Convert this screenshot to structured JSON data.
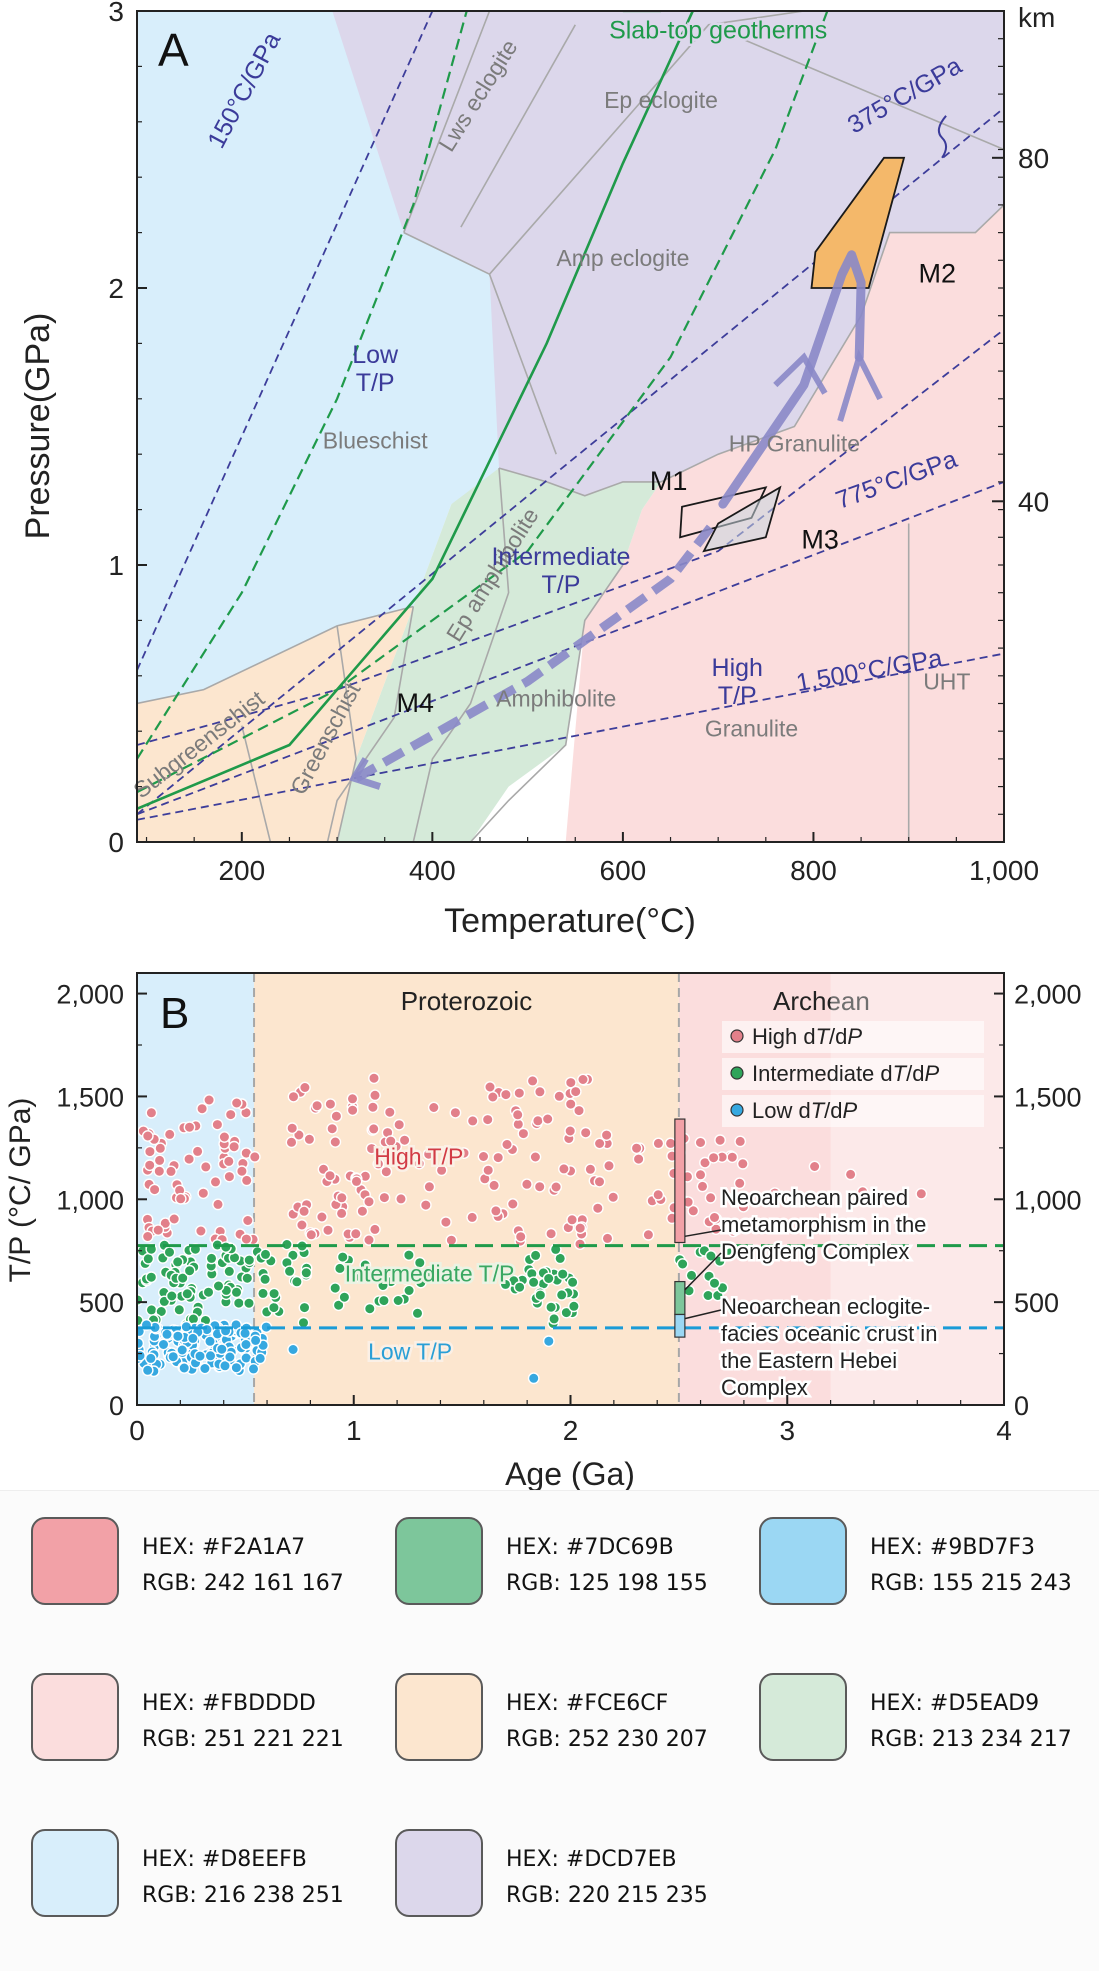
{
  "chart_data": [
    {
      "panel": "A",
      "type": "line",
      "panel_label": "A",
      "xlabel": "Temperature(°C)",
      "ylabel": "Pressure(GPa)",
      "y2label": "km",
      "xlim": [
        90,
        1000
      ],
      "ylim": [
        0,
        3
      ],
      "xticks": [
        200,
        400,
        600,
        800,
        1000
      ],
      "xtick_labels": [
        "200",
        "400",
        "600",
        "800",
        "1,000"
      ],
      "yticks": [
        0,
        1,
        2,
        3
      ],
      "ytick_labels": [
        "0",
        "1",
        "2",
        "3"
      ],
      "y2ticks": [
        {
          "gpa": 1.23,
          "label": "40"
        },
        {
          "gpa": 2.47,
          "label": "80"
        }
      ],
      "facies_regions": [
        {
          "name": "Lws eclogite",
          "color": "#DCD7EB"
        },
        {
          "name": "Ep eclogite",
          "color": "#DCD7EB"
        },
        {
          "name": "Amp eclogite",
          "color": "#DCD7EB"
        },
        {
          "name": "Blueschist",
          "color": "#D8EEFB"
        },
        {
          "name": "Ep amphibolite",
          "color": "#D5EAD9"
        },
        {
          "name": "Amphibolite",
          "color": "#D5EAD9"
        },
        {
          "name": "HP Granulite",
          "color": "#FBDDDD"
        },
        {
          "name": "Granulite",
          "color": "#FBDDDD"
        },
        {
          "name": "UHT",
          "color": "#FBDDDD"
        },
        {
          "name": "Greenschist",
          "color": "#FCE6CF"
        },
        {
          "name": "Subgreenschist",
          "color": "#FCE6CF"
        }
      ],
      "regime_labels": [
        {
          "line1": "Low",
          "line2": "T/P",
          "T": 340,
          "P": 1.73
        },
        {
          "line1": "Intermediate",
          "line2": "T/P",
          "T": 535,
          "P": 1.0
        },
        {
          "line1": "High",
          "line2": "T/P",
          "T": 720,
          "P": 0.6
        }
      ],
      "thermal_gradients": [
        {
          "label": "150°C/GPa",
          "slope": 150
        },
        {
          "label": "375°C/GPa",
          "slope": 375
        },
        {
          "label": "775°C/GPa",
          "slope": 775
        },
        {
          "label": "1,500°C/GPa",
          "slope": 1500
        }
      ],
      "slab_geotherms_label": "Slab-top geotherms",
      "metamorphic_stages": [
        {
          "name": "M1",
          "points": [
            [
              662,
              1.21
            ],
            [
              750,
              1.28
            ],
            [
              735,
              1.17
            ],
            [
              660,
              1.1
            ]
          ]
        },
        {
          "name": "M2",
          "points": [
            [
              798,
              2.0
            ],
            [
              858,
              2.0
            ],
            [
              895,
              2.47
            ],
            [
              874,
              2.47
            ],
            [
              802,
              2.13
            ]
          ]
        },
        {
          "name": "M3",
          "points": [
            [
              700,
              1.15
            ],
            [
              765,
              1.28
            ],
            [
              750,
              1.1
            ],
            [
              685,
              1.05
            ]
          ]
        },
        {
          "name": "M4",
          "T": 382,
          "P": 0.45
        }
      ],
      "pt_path_prograde": [
        [
          320,
          0.23
        ],
        [
          500,
          0.58
        ],
        [
          650,
          0.95
        ],
        [
          695,
          1.15
        ]
      ],
      "pt_path_loop": [
        [
          705,
          1.22
        ],
        [
          790,
          1.65
        ],
        [
          830,
          2.05
        ],
        [
          840,
          2.12
        ],
        [
          850,
          2.02
        ],
        [
          848,
          1.75
        ]
      ],
      "pt_path_retro": [
        [
          700,
          1.22
        ],
        [
          800,
          1.6
        ]
      ]
    },
    {
      "panel": "B",
      "type": "scatter",
      "panel_label": "B",
      "xlabel": "Age (Ga)",
      "ylabel": "T/P (°C/ GPa)",
      "xlim": [
        0,
        4
      ],
      "ylim": [
        0,
        2100
      ],
      "xticks": [
        0,
        1,
        2,
        3,
        4
      ],
      "xtick_labels": [
        "0",
        "1",
        "2",
        "3",
        "4"
      ],
      "yticks": [
        0,
        500,
        1000,
        1500,
        2000
      ],
      "ytick_labels": [
        "0",
        "500",
        "1,000",
        "1,500",
        "2,000"
      ],
      "eon_bands": [
        {
          "name": "",
          "from": 0,
          "to": 0.54,
          "color": "#D8EEFB"
        },
        {
          "name": "Proterozoic",
          "from": 0.54,
          "to": 2.5,
          "color": "#FCE6CF"
        },
        {
          "name": "Archean",
          "from": 2.5,
          "to": 4,
          "color": "#FBDDDD"
        }
      ],
      "threshold_lines": [
        {
          "name": "high-intermediate boundary",
          "value": 775,
          "color": "#1f9a4a"
        },
        {
          "name": "intermediate-low boundary",
          "value": 375,
          "color": "#1a9bd7"
        }
      ],
      "series": [
        {
          "name": "High dT/dP",
          "color": "#F2A1A7",
          "label_prefix": "High d",
          "label_T": "T",
          "label_mid": "/d",
          "label_P": "P"
        },
        {
          "name": "Intermediate dT/dP",
          "color": "#7DC69B",
          "label_prefix": "Intermediate d",
          "label_T": "T",
          "label_mid": "/d",
          "label_P": "P"
        },
        {
          "name": "Low dT/dP",
          "color": "#9BD7F3",
          "label_prefix": "Low d",
          "label_T": "T",
          "label_mid": "/d",
          "label_P": "P"
        }
      ],
      "in_plot_labels": [
        {
          "text": "High T/P",
          "age": 1.3,
          "tp": 1170,
          "color": "#d23b45"
        },
        {
          "text": "Intermediate T/P",
          "age": 1.35,
          "tp": 600,
          "color": "#3aa862"
        },
        {
          "text": "Low T/P",
          "age": 1.26,
          "tp": 220,
          "color": "#2a9fd6"
        }
      ],
      "neoarchean_bars": [
        {
          "name": "paired",
          "color": "#F2A1A7",
          "age": 2.5,
          "tp_from": 790,
          "tp_to": 1390
        },
        {
          "name": "intermediate",
          "color": "#7DC69B",
          "age": 2.5,
          "tp_from": 440,
          "tp_to": 600
        },
        {
          "name": "eclogite",
          "color": "#9BD7F3",
          "age": 2.5,
          "tp_from": 330,
          "tp_to": 440
        }
      ],
      "annotations": [
        {
          "lines": [
            "Neoarchean paired",
            "metamorphism in the",
            "Dengfeng Complex"
          ]
        },
        {
          "lines": [
            "Neoarchean eclogite-",
            "facies oceanic crust in",
            "the Eastern Hebei",
            "Complex"
          ]
        }
      ]
    }
  ],
  "palette": [
    {
      "hex": "HEX: #F2A1A7",
      "rgb": "RGB: 242 161 167",
      "color": "#F2A1A7"
    },
    {
      "hex": "HEX: #7DC69B",
      "rgb": "RGB: 125 198 155",
      "color": "#7DC69B"
    },
    {
      "hex": "HEX: #9BD7F3",
      "rgb": "RGB: 155 215 243",
      "color": "#9BD7F3"
    },
    {
      "hex": "HEX: #FBDDDD",
      "rgb": "RGB: 251 221 221",
      "color": "#FBDDDD"
    },
    {
      "hex": "HEX: #FCE6CF",
      "rgb": "RGB: 252 230 207",
      "color": "#FCE6CF"
    },
    {
      "hex": "HEX: #D5EAD9",
      "rgb": "RGB: 213 234 217",
      "color": "#D5EAD9"
    },
    {
      "hex": "HEX: #D8EEFB",
      "rgb": "RGB: 216 238 251",
      "color": "#D8EEFB"
    },
    {
      "hex": "HEX: #DCD7EB",
      "rgb": "RGB: 220 215 235",
      "color": "#DCD7EB"
    }
  ]
}
